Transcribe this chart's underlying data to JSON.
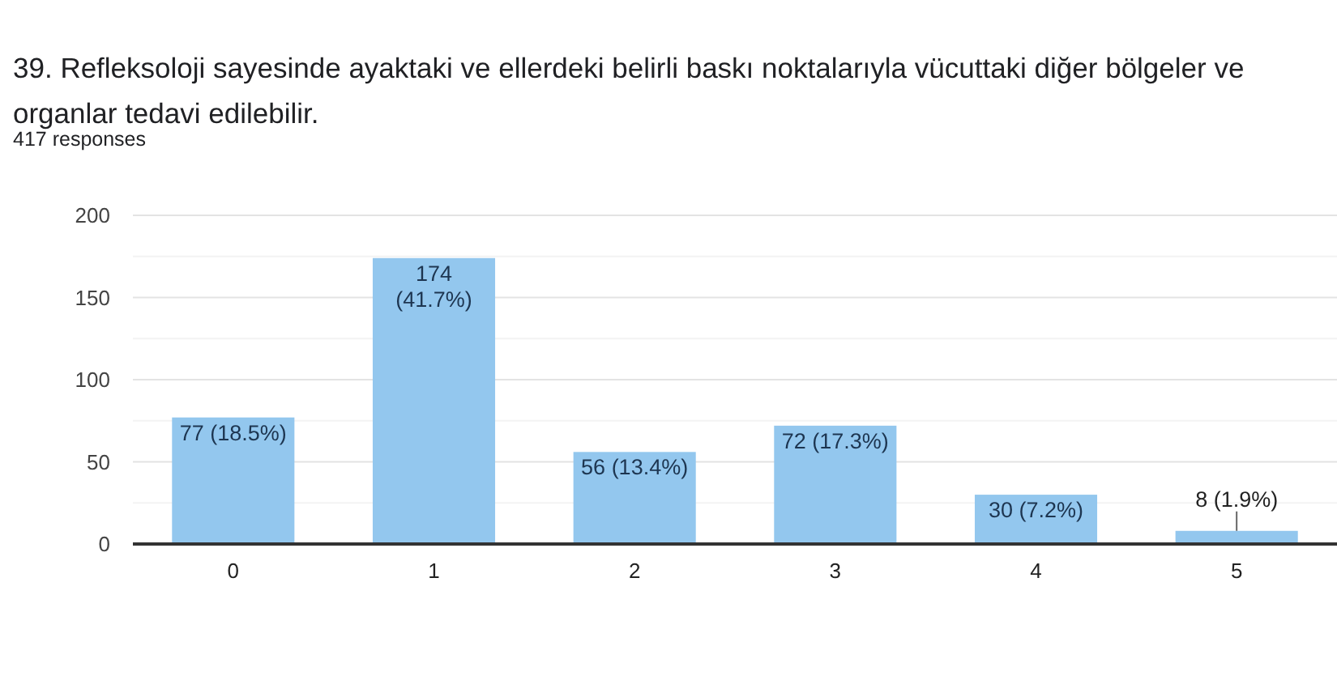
{
  "chart_data": {
    "type": "bar",
    "title": "39. Refleksoloji sayesinde ayaktaki ve ellerdeki belirli baskı noktalarıyla vücuttaki diğer bölgeler ve organlar tedavi edilebilir.",
    "subtitle": "417 responses",
    "categories": [
      "0",
      "1",
      "2",
      "3",
      "4",
      "5"
    ],
    "values": [
      77,
      174,
      56,
      72,
      30,
      8
    ],
    "color": "#93c7ee",
    "value_labels": [
      "77 (18.5%)",
      "174 (41.7%)",
      "56 (13.4%)",
      "72 (17.3%)",
      "30 (7.2%)",
      "8 (1.9%)"
    ],
    "ylim": [
      0,
      200
    ],
    "yticks": [
      0,
      {
        "value": 25,
        "label": null
      },
      50,
      {
        "value": 75,
        "label": null
      },
      100,
      {
        "value": 125,
        "label": null
      },
      150,
      {
        "value": 175,
        "label": null
      },
      200
    ],
    "grid": "y"
  }
}
